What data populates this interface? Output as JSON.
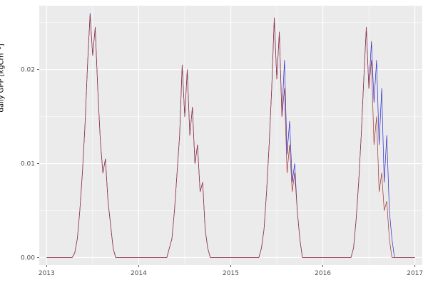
{
  "chart_data": {
    "type": "line",
    "title": "",
    "xlabel": "",
    "ylabel": "daily GPP [kgCm⁻²]",
    "panel_bg": "#EBEBEB",
    "grid": true,
    "legend": "none",
    "xlim": [
      2012.92,
      2017.08
    ],
    "ylim": [
      -0.0008,
      0.0268
    ],
    "x_ticks": [
      2013,
      2014,
      2015,
      2016,
      2017
    ],
    "x_tick_labels": [
      "2013",
      "2014",
      "2015",
      "2016",
      "2017"
    ],
    "x_minor_ticks": [
      2013.5,
      2014.5,
      2015.5,
      2016.5
    ],
    "y_ticks": [
      0.0,
      0.01,
      0.02
    ],
    "y_tick_labels": [
      "0.00",
      "0.01",
      "0.02"
    ],
    "y_minor_ticks": [
      0.005,
      0.015,
      0.025
    ],
    "x_start": 2013.0,
    "x_step": 0.0277778,
    "series": [
      {
        "name": "series-blue",
        "color": "#2828C8",
        "values": [
          0,
          0,
          0,
          0,
          0,
          0,
          0,
          0,
          0,
          0,
          0,
          0.0005,
          0.002,
          0.005,
          0.009,
          0.014,
          0.0205,
          0.026,
          0.0215,
          0.0245,
          0.018,
          0.0125,
          0.009,
          0.0105,
          0.006,
          0.0035,
          0.001,
          0,
          0,
          0,
          0,
          0,
          0,
          0,
          0,
          0,
          0,
          0,
          0,
          0,
          0,
          0,
          0,
          0,
          0,
          0,
          0,
          0,
          0.001,
          0.002,
          0.005,
          0.009,
          0.013,
          0.0205,
          0.015,
          0.02,
          0.013,
          0.016,
          0.01,
          0.012,
          0.007,
          0.008,
          0.003,
          0.001,
          0,
          0,
          0,
          0,
          0,
          0,
          0,
          0,
          0,
          0,
          0,
          0,
          0,
          0,
          0,
          0,
          0,
          0,
          0,
          0,
          0.001,
          0.003,
          0.007,
          0.012,
          0.018,
          0.0255,
          0.019,
          0.024,
          0.015,
          0.021,
          0.011,
          0.0145,
          0.008,
          0.01,
          0.005,
          0.002,
          0,
          0,
          0,
          0,
          0,
          0,
          0,
          0,
          0,
          0,
          0,
          0,
          0,
          0,
          0,
          0,
          0,
          0,
          0,
          0,
          0.001,
          0.004,
          0.008,
          0.013,
          0.019,
          0.0245,
          0.018,
          0.023,
          0.0165,
          0.021,
          0.012,
          0.018,
          0.008,
          0.013,
          0.005,
          0.002,
          0,
          0,
          0,
          0,
          0,
          0,
          0,
          0,
          0
        ]
      },
      {
        "name": "series-dark-red",
        "color": "#A03232",
        "values": [
          0,
          0,
          0,
          0,
          0,
          0,
          0,
          0,
          0,
          0,
          0,
          0.0005,
          0.002,
          0.005,
          0.009,
          0.014,
          0.0205,
          0.0258,
          0.0215,
          0.0245,
          0.018,
          0.0125,
          0.009,
          0.0105,
          0.006,
          0.0035,
          0.001,
          0,
          0,
          0,
          0,
          0,
          0,
          0,
          0,
          0,
          0,
          0,
          0,
          0,
          0,
          0,
          0,
          0,
          0,
          0,
          0,
          0,
          0.001,
          0.002,
          0.005,
          0.009,
          0.013,
          0.0205,
          0.015,
          0.02,
          0.013,
          0.016,
          0.01,
          0.012,
          0.007,
          0.008,
          0.003,
          0.001,
          0,
          0,
          0,
          0,
          0,
          0,
          0,
          0,
          0,
          0,
          0,
          0,
          0,
          0,
          0,
          0,
          0,
          0,
          0,
          0,
          0.001,
          0.003,
          0.007,
          0.012,
          0.018,
          0.0255,
          0.019,
          0.024,
          0.015,
          0.018,
          0.009,
          0.012,
          0.007,
          0.009,
          0.005,
          0.002,
          0,
          0,
          0,
          0,
          0,
          0,
          0,
          0,
          0,
          0,
          0,
          0,
          0,
          0,
          0,
          0,
          0,
          0,
          0,
          0,
          0.001,
          0.004,
          0.008,
          0.013,
          0.019,
          0.0245,
          0.018,
          0.021,
          0.012,
          0.015,
          0.007,
          0.009,
          0.005,
          0.006,
          0.002,
          0,
          0,
          0,
          0,
          0,
          0,
          0,
          0,
          0,
          0
        ]
      }
    ],
    "theme": {
      "major_grid_color": "#FFFFFF",
      "minor_grid_color": "#FFFFFF",
      "tick_label_color": "#4D4D4D",
      "tick_mark_color": "#333333",
      "axis_title_color": "#000000"
    }
  }
}
